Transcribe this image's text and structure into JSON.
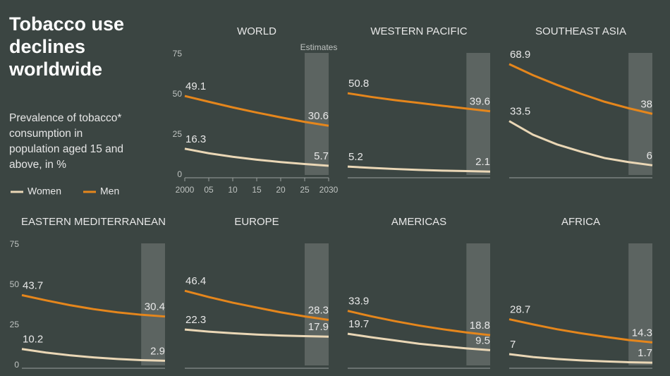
{
  "title": "Tobacco use declines worldwide",
  "subtitle": "Prevalence of tobacco* consumption in population aged 15 and above, in %",
  "chart_data": [
    {
      "type": "line",
      "title": "WORLD",
      "estimates_label": "Estimates",
      "estimates_xlim": [
        2025,
        2030
      ],
      "x": [
        2000,
        2005,
        2010,
        2015,
        2020,
        2025,
        2030
      ],
      "xlim": [
        2000,
        2030
      ],
      "ylim": [
        0,
        75
      ],
      "yticks": [
        0,
        25,
        50,
        75
      ],
      "xticks": [
        2000,
        {
          "value": 2005,
          "label": "05"
        },
        {
          "value": 2010,
          "label": "10"
        },
        {
          "value": 2015,
          "label": "15"
        },
        {
          "value": 2020,
          "label": "20"
        },
        {
          "value": 2025,
          "label": "25"
        },
        2030
      ],
      "series": [
        {
          "name": "Women",
          "color": "#ead7b6",
          "values": [
            16.3,
            13.5,
            11.3,
            9.5,
            8,
            6.8,
            5.7
          ]
        },
        {
          "name": "Men",
          "color": "#e5861c",
          "values": [
            49.1,
            45.5,
            42,
            38.8,
            35.8,
            33,
            30.6
          ]
        }
      ]
    },
    {
      "type": "line",
      "title": "WESTERN PACIFIC",
      "estimates_xlim": [
        2025,
        2030
      ],
      "x": [
        2000,
        2005,
        2010,
        2015,
        2020,
        2025,
        2030
      ],
      "xlim": [
        2000,
        2030
      ],
      "ylim": [
        0,
        75
      ],
      "series": [
        {
          "name": "Women",
          "color": "#ead7b6",
          "values": [
            5.2,
            4.4,
            3.7,
            3.1,
            2.7,
            2.4,
            2.1
          ]
        },
        {
          "name": "Men",
          "color": "#e5861c",
          "values": [
            50.8,
            48.5,
            46.5,
            44.8,
            43,
            41.3,
            39.6
          ]
        }
      ]
    },
    {
      "type": "line",
      "title": "SOUTHEAST ASIA",
      "estimates_xlim": [
        2025,
        2030
      ],
      "x": [
        2000,
        2005,
        2010,
        2015,
        2020,
        2025,
        2030
      ],
      "xlim": [
        2000,
        2030
      ],
      "ylim": [
        0,
        75
      ],
      "series": [
        {
          "name": "Women",
          "color": "#ead7b6",
          "values": [
            33.5,
            25,
            19,
            14.5,
            10.5,
            8,
            6
          ]
        },
        {
          "name": "Men",
          "color": "#e5861c",
          "values": [
            68.9,
            62,
            56,
            50.5,
            45.5,
            41.5,
            38
          ]
        }
      ]
    },
    {
      "type": "line",
      "title": "EASTERN MEDITERRANEAN",
      "estimates_xlim": [
        2025,
        2030
      ],
      "x": [
        2000,
        2005,
        2010,
        2015,
        2020,
        2025,
        2030
      ],
      "xlim": [
        2000,
        2030
      ],
      "ylim": [
        0,
        75
      ],
      "yticks": [
        0,
        25,
        50,
        75
      ],
      "series": [
        {
          "name": "Women",
          "color": "#ead7b6",
          "values": [
            10.2,
            8,
            6.3,
            5,
            4,
            3.3,
            2.9
          ]
        },
        {
          "name": "Men",
          "color": "#e5861c",
          "values": [
            43.7,
            40.5,
            37.5,
            35,
            33,
            31.5,
            30.4
          ]
        }
      ]
    },
    {
      "type": "line",
      "title": "EUROPE",
      "estimates_xlim": [
        2025,
        2030
      ],
      "x": [
        2000,
        2005,
        2010,
        2015,
        2020,
        2025,
        2030
      ],
      "xlim": [
        2000,
        2030
      ],
      "ylim": [
        0,
        75
      ],
      "series": [
        {
          "name": "Women",
          "color": "#ead7b6",
          "values": [
            22.3,
            21,
            20,
            19.2,
            18.6,
            18.2,
            17.9
          ]
        },
        {
          "name": "Men",
          "color": "#e5861c",
          "values": [
            46.4,
            42.5,
            39,
            36,
            33,
            30.5,
            28.3
          ]
        }
      ]
    },
    {
      "type": "line",
      "title": "AMERICAS",
      "estimates_xlim": [
        2025,
        2030
      ],
      "x": [
        2000,
        2005,
        2010,
        2015,
        2020,
        2025,
        2030
      ],
      "xlim": [
        2000,
        2030
      ],
      "ylim": [
        0,
        75
      ],
      "series": [
        {
          "name": "Women",
          "color": "#ead7b6",
          "values": [
            19.7,
            17.5,
            15.5,
            13.5,
            12,
            10.6,
            9.5
          ]
        },
        {
          "name": "Men",
          "color": "#e5861c",
          "values": [
            33.9,
            30.5,
            27.5,
            24.8,
            22.5,
            20.5,
            18.8
          ]
        }
      ]
    },
    {
      "type": "line",
      "title": "AFRICA",
      "estimates_xlim": [
        2025,
        2030
      ],
      "x": [
        2000,
        2005,
        2010,
        2015,
        2020,
        2025,
        2030
      ],
      "xlim": [
        2000,
        2030
      ],
      "ylim": [
        0,
        75
      ],
      "series": [
        {
          "name": "Women",
          "color": "#ead7b6",
          "values": [
            7,
            5.2,
            4,
            3.1,
            2.5,
            2,
            1.7
          ]
        },
        {
          "name": "Men",
          "color": "#e5861c",
          "values": [
            28.7,
            25.5,
            22.5,
            20,
            17.8,
            15.8,
            14.3
          ]
        }
      ]
    }
  ]
}
